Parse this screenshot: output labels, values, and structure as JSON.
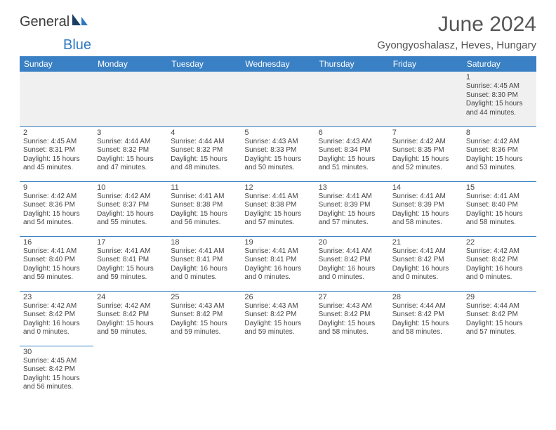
{
  "brand": {
    "part1": "General",
    "part2": "Blue"
  },
  "title": "June 2024",
  "location": "Gyongyoshalasz, Heves, Hungary",
  "columns": [
    "Sunday",
    "Monday",
    "Tuesday",
    "Wednesday",
    "Thursday",
    "Friday",
    "Saturday"
  ],
  "colors": {
    "header_bg": "#3a80c4",
    "header_fg": "#ffffff",
    "cell_border": "#3a80c4",
    "empty_bg": "#f0f0f0",
    "text": "#444444",
    "brand_blue": "#2f79bf"
  },
  "weeks": [
    [
      null,
      null,
      null,
      null,
      null,
      null,
      {
        "n": "1",
        "sr": "4:45 AM",
        "ss": "8:30 PM",
        "dl": "15 hours and 44 minutes."
      }
    ],
    [
      {
        "n": "2",
        "sr": "4:45 AM",
        "ss": "8:31 PM",
        "dl": "15 hours and 45 minutes."
      },
      {
        "n": "3",
        "sr": "4:44 AM",
        "ss": "8:32 PM",
        "dl": "15 hours and 47 minutes."
      },
      {
        "n": "4",
        "sr": "4:44 AM",
        "ss": "8:32 PM",
        "dl": "15 hours and 48 minutes."
      },
      {
        "n": "5",
        "sr": "4:43 AM",
        "ss": "8:33 PM",
        "dl": "15 hours and 50 minutes."
      },
      {
        "n": "6",
        "sr": "4:43 AM",
        "ss": "8:34 PM",
        "dl": "15 hours and 51 minutes."
      },
      {
        "n": "7",
        "sr": "4:42 AM",
        "ss": "8:35 PM",
        "dl": "15 hours and 52 minutes."
      },
      {
        "n": "8",
        "sr": "4:42 AM",
        "ss": "8:36 PM",
        "dl": "15 hours and 53 minutes."
      }
    ],
    [
      {
        "n": "9",
        "sr": "4:42 AM",
        "ss": "8:36 PM",
        "dl": "15 hours and 54 minutes."
      },
      {
        "n": "10",
        "sr": "4:42 AM",
        "ss": "8:37 PM",
        "dl": "15 hours and 55 minutes."
      },
      {
        "n": "11",
        "sr": "4:41 AM",
        "ss": "8:38 PM",
        "dl": "15 hours and 56 minutes."
      },
      {
        "n": "12",
        "sr": "4:41 AM",
        "ss": "8:38 PM",
        "dl": "15 hours and 57 minutes."
      },
      {
        "n": "13",
        "sr": "4:41 AM",
        "ss": "8:39 PM",
        "dl": "15 hours and 57 minutes."
      },
      {
        "n": "14",
        "sr": "4:41 AM",
        "ss": "8:39 PM",
        "dl": "15 hours and 58 minutes."
      },
      {
        "n": "15",
        "sr": "4:41 AM",
        "ss": "8:40 PM",
        "dl": "15 hours and 58 minutes."
      }
    ],
    [
      {
        "n": "16",
        "sr": "4:41 AM",
        "ss": "8:40 PM",
        "dl": "15 hours and 59 minutes."
      },
      {
        "n": "17",
        "sr": "4:41 AM",
        "ss": "8:41 PM",
        "dl": "15 hours and 59 minutes."
      },
      {
        "n": "18",
        "sr": "4:41 AM",
        "ss": "8:41 PM",
        "dl": "16 hours and 0 minutes."
      },
      {
        "n": "19",
        "sr": "4:41 AM",
        "ss": "8:41 PM",
        "dl": "16 hours and 0 minutes."
      },
      {
        "n": "20",
        "sr": "4:41 AM",
        "ss": "8:42 PM",
        "dl": "16 hours and 0 minutes."
      },
      {
        "n": "21",
        "sr": "4:41 AM",
        "ss": "8:42 PM",
        "dl": "16 hours and 0 minutes."
      },
      {
        "n": "22",
        "sr": "4:42 AM",
        "ss": "8:42 PM",
        "dl": "16 hours and 0 minutes."
      }
    ],
    [
      {
        "n": "23",
        "sr": "4:42 AM",
        "ss": "8:42 PM",
        "dl": "16 hours and 0 minutes."
      },
      {
        "n": "24",
        "sr": "4:42 AM",
        "ss": "8:42 PM",
        "dl": "15 hours and 59 minutes."
      },
      {
        "n": "25",
        "sr": "4:43 AM",
        "ss": "8:42 PM",
        "dl": "15 hours and 59 minutes."
      },
      {
        "n": "26",
        "sr": "4:43 AM",
        "ss": "8:42 PM",
        "dl": "15 hours and 59 minutes."
      },
      {
        "n": "27",
        "sr": "4:43 AM",
        "ss": "8:42 PM",
        "dl": "15 hours and 58 minutes."
      },
      {
        "n": "28",
        "sr": "4:44 AM",
        "ss": "8:42 PM",
        "dl": "15 hours and 58 minutes."
      },
      {
        "n": "29",
        "sr": "4:44 AM",
        "ss": "8:42 PM",
        "dl": "15 hours and 57 minutes."
      }
    ],
    [
      {
        "n": "30",
        "sr": "4:45 AM",
        "ss": "8:42 PM",
        "dl": "15 hours and 56 minutes."
      },
      null,
      null,
      null,
      null,
      null,
      null
    ]
  ],
  "labels": {
    "sunrise": "Sunrise:",
    "sunset": "Sunset:",
    "daylight": "Daylight:"
  }
}
